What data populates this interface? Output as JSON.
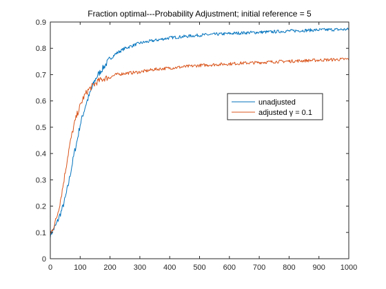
{
  "chart_data": {
    "type": "line",
    "title": "Fraction optimal---Probability Adjustment; initial reference = 5",
    "xlabel": "",
    "ylabel": "",
    "xlim": [
      0,
      1000
    ],
    "ylim": [
      0,
      0.9
    ],
    "x_ticks": [
      0,
      100,
      200,
      300,
      400,
      500,
      600,
      700,
      800,
      900,
      1000
    ],
    "y_ticks": [
      0,
      0.1,
      0.2,
      0.3,
      0.4,
      0.5,
      0.6,
      0.7,
      0.8,
      0.9
    ],
    "x_tick_labels": [
      "0",
      "100",
      "200",
      "300",
      "400",
      "500",
      "600",
      "700",
      "800",
      "900",
      "1000"
    ],
    "y_tick_labels": [
      "0",
      "0.1",
      "0.2",
      "0.3",
      "0.4",
      "0.5",
      "0.6",
      "0.7",
      "0.8",
      "0.9"
    ],
    "grid": false,
    "legend_position": "right",
    "series": [
      {
        "name": "unadjusted",
        "color": "#0072BD",
        "x": [
          0,
          10,
          20,
          30,
          40,
          50,
          60,
          70,
          80,
          90,
          100,
          110,
          120,
          130,
          140,
          150,
          160,
          180,
          200,
          220,
          250,
          300,
          350,
          400,
          450,
          500,
          550,
          600,
          650,
          700,
          750,
          800,
          850,
          900,
          950,
          1000
        ],
        "y": [
          0.09,
          0.11,
          0.13,
          0.16,
          0.19,
          0.23,
          0.28,
          0.34,
          0.4,
          0.45,
          0.51,
          0.55,
          0.59,
          0.62,
          0.65,
          0.68,
          0.7,
          0.73,
          0.76,
          0.78,
          0.8,
          0.82,
          0.83,
          0.84,
          0.845,
          0.85,
          0.853,
          0.856,
          0.859,
          0.861,
          0.863,
          0.866,
          0.868,
          0.87,
          0.871,
          0.872
        ]
      },
      {
        "name": "adjusted γ = 0.1",
        "color": "#D95319",
        "x": [
          0,
          10,
          20,
          30,
          40,
          50,
          60,
          70,
          80,
          90,
          100,
          110,
          120,
          130,
          140,
          150,
          160,
          180,
          200,
          220,
          250,
          300,
          350,
          400,
          450,
          500,
          550,
          600,
          650,
          700,
          750,
          800,
          850,
          900,
          950,
          1000
        ],
        "y": [
          0.09,
          0.12,
          0.15,
          0.2,
          0.26,
          0.33,
          0.4,
          0.46,
          0.51,
          0.55,
          0.58,
          0.61,
          0.63,
          0.645,
          0.655,
          0.665,
          0.675,
          0.685,
          0.69,
          0.7,
          0.705,
          0.71,
          0.72,
          0.725,
          0.73,
          0.735,
          0.738,
          0.741,
          0.744,
          0.746,
          0.749,
          0.751,
          0.753,
          0.755,
          0.757,
          0.759
        ]
      }
    ]
  }
}
